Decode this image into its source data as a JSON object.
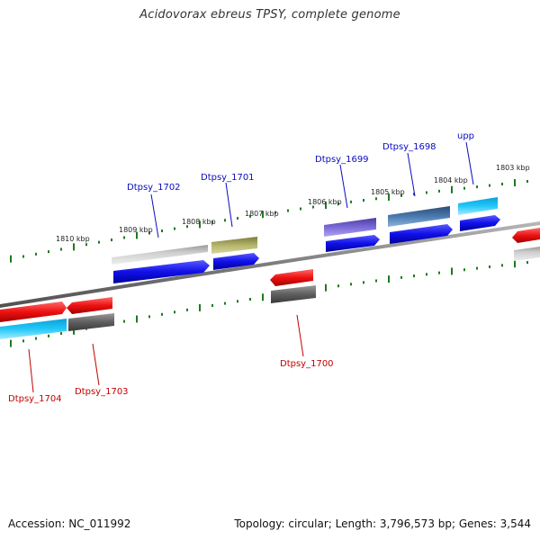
{
  "title": "Acidovorax ebreus TPSY, complete genome",
  "footer": {
    "accession": "Accession: NC_011992",
    "stats": "Topology: circular; Length: 3,796,573 bp; Genes: 3,544"
  },
  "scale_labels": [
    "1810 kbp",
    "1809 kbp",
    "1808 kbp",
    "1807 kbp",
    "1806 kbp",
    "1805 kbp",
    "1804 kbp",
    "1803 kbp"
  ],
  "genes_top": [
    "Dtpsy_1702",
    "Dtpsy_1701",
    "Dtpsy_1699",
    "Dtpsy_1698",
    "upp"
  ],
  "genes_bottom": [
    "Dtpsy_1704",
    "Dtpsy_1703",
    "Dtpsy_1700"
  ],
  "colors": {
    "backbone": "#8c8c8c",
    "forward_cds": "#1010e0",
    "reverse_cds": "#e81010",
    "tick": "#1f7a1f",
    "label_top": "#0b0bbd",
    "label_bottom": "#c40000"
  }
}
